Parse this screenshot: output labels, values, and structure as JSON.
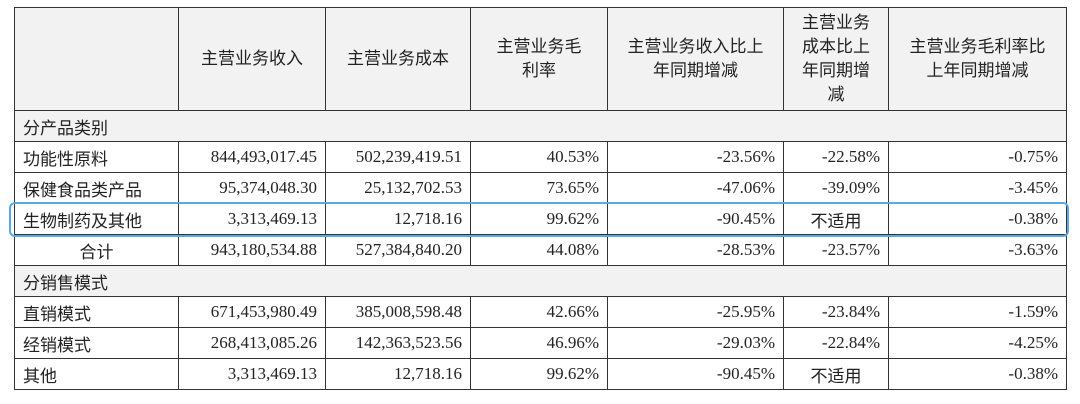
{
  "table": {
    "columns": [
      "主营业务收入",
      "主营业务成本",
      "主营业务毛利率",
      "主营业务收入比上年同期增减",
      "主营业务成本比上年同期增减",
      "主营业务毛利率比上年同期增减"
    ],
    "sections": [
      {
        "title": "分产品类别",
        "rows": [
          [
            "功能性原料",
            "844,493,017.45",
            "502,239,419.51",
            "40.53%",
            "-23.56%",
            "-22.58%",
            "-0.75%"
          ],
          [
            "保健食品类产品",
            "95,374,048.30",
            "25,132,702.53",
            "73.65%",
            "-47.06%",
            "-39.09%",
            "-3.45%"
          ],
          [
            "生物制药及其他",
            "3,313,469.13",
            "12,718.16",
            "99.62%",
            "-90.45%",
            "不适用",
            "-0.38%"
          ],
          [
            "合计",
            "943,180,534.88",
            "527,384,840.20",
            "44.08%",
            "-28.53%",
            "-23.57%",
            "-3.63%"
          ]
        ]
      },
      {
        "title": "分销售模式",
        "rows": [
          [
            "直销模式",
            "671,453,980.49",
            "385,008,598.48",
            "42.66%",
            "-25.95%",
            "-23.84%",
            "-1.59%"
          ],
          [
            "经销模式",
            "268,413,085.26",
            "142,363,523.56",
            "46.96%",
            "-29.03%",
            "-22.84%",
            "-4.25%"
          ],
          [
            "其他",
            "3,313,469.13",
            "12,718.16",
            "99.62%",
            "-90.45%",
            "不适用",
            "-0.38%"
          ]
        ]
      }
    ]
  }
}
